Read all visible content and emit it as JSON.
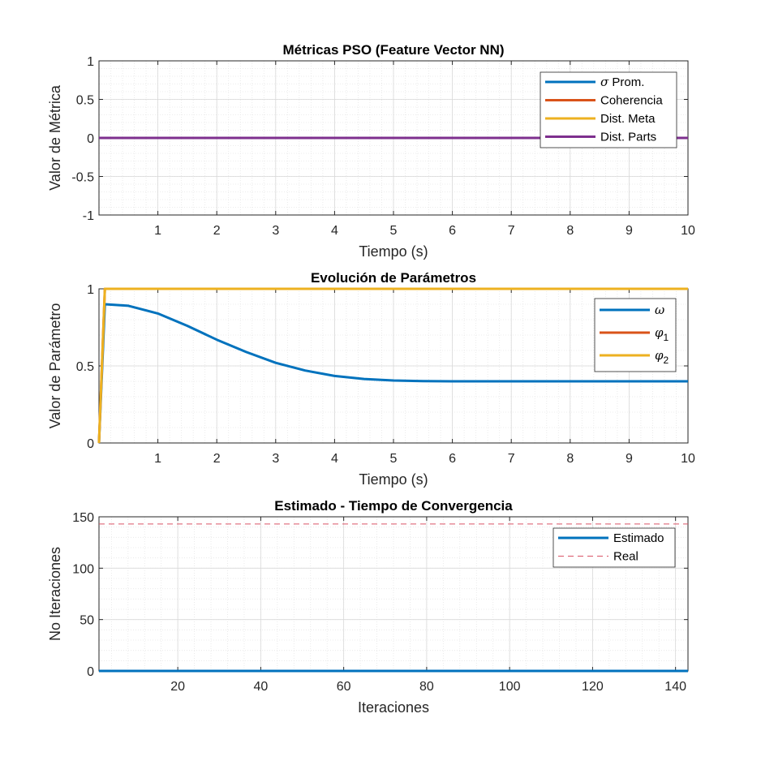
{
  "colors": {
    "blue": "#0072BD",
    "orange": "#D95319",
    "yellow": "#EDB120",
    "purple": "#7E2F8E",
    "red_dash": "#D95366",
    "grid": "#d9d9d9",
    "axis": "#262626"
  },
  "chart_data": [
    {
      "type": "line",
      "title": "Métricas PSO (Feature Vector NN)",
      "xlabel": "Tiempo (s)",
      "ylabel": "Valor de Métrica",
      "xlim": [
        0,
        10
      ],
      "ylim": [
        -1,
        1
      ],
      "xticks": [
        "1",
        "2",
        "3",
        "4",
        "5",
        "6",
        "7",
        "8",
        "9",
        "10"
      ],
      "yticks": [
        "-1",
        "-0.5",
        "0",
        "0.5",
        "1"
      ],
      "grid": true,
      "minor_grid": true,
      "legend_position": "top-right",
      "series": [
        {
          "name": "σ Prom.",
          "legend_symbol": "σ",
          "legend_rest": " Prom.",
          "color": "blue",
          "x": [
            0,
            10
          ],
          "y": [
            0,
            0
          ]
        },
        {
          "name": "Coherencia",
          "legend_symbol": "",
          "legend_rest": "Coherencia",
          "color": "orange",
          "x": [
            0,
            10
          ],
          "y": [
            0,
            0
          ]
        },
        {
          "name": "Dist. Meta",
          "legend_symbol": "",
          "legend_rest": "Dist. Meta",
          "color": "yellow",
          "x": [
            0,
            10
          ],
          "y": [
            0,
            0
          ]
        },
        {
          "name": "Dist. Parts",
          "legend_symbol": "",
          "legend_rest": "Dist. Parts",
          "color": "purple",
          "x": [
            0,
            10
          ],
          "y": [
            0,
            0
          ]
        }
      ]
    },
    {
      "type": "line",
      "title": "Evolución de Parámetros",
      "xlabel": "Tiempo (s)",
      "ylabel": "Valor de Parámetro",
      "xlim": [
        0,
        10
      ],
      "ylim": [
        0,
        1
      ],
      "xticks": [
        "1",
        "2",
        "3",
        "4",
        "5",
        "6",
        "7",
        "8",
        "9",
        "10"
      ],
      "yticks": [
        "0",
        "0.5",
        "1"
      ],
      "grid": true,
      "minor_grid": true,
      "legend_position": "top-right",
      "series": [
        {
          "name": "ω",
          "legend_symbol": "ω",
          "legend_sub": "",
          "color": "blue",
          "x": [
            0,
            0.1,
            0.5,
            1,
            1.5,
            2,
            2.5,
            3,
            3.5,
            4,
            4.5,
            5,
            5.5,
            6,
            7,
            8,
            9,
            10
          ],
          "y": [
            0,
            0.9,
            0.89,
            0.84,
            0.76,
            0.67,
            0.59,
            0.52,
            0.47,
            0.435,
            0.415,
            0.405,
            0.401,
            0.4,
            0.4,
            0.4,
            0.4,
            0.4
          ]
        },
        {
          "name": "φ1",
          "legend_symbol": "φ",
          "legend_sub": "1",
          "color": "orange",
          "x": [
            0,
            0.1,
            10
          ],
          "y": [
            0,
            1,
            1
          ]
        },
        {
          "name": "φ2",
          "legend_symbol": "φ",
          "legend_sub": "2",
          "color": "yellow",
          "x": [
            0,
            0.1,
            10
          ],
          "y": [
            0,
            1,
            1
          ]
        }
      ]
    },
    {
      "type": "line",
      "title": "Estimado - Tiempo de Convergencia",
      "xlabel": "Iteraciones",
      "ylabel": "No Iteraciones",
      "xlim": [
        1,
        143
      ],
      "ylim": [
        0,
        150
      ],
      "xticks": [
        "20",
        "40",
        "60",
        "80",
        "100",
        "120",
        "140"
      ],
      "yticks": [
        "0",
        "50",
        "100",
        "150"
      ],
      "grid": true,
      "minor_grid": true,
      "legend_position": "top-right",
      "series": [
        {
          "name": "Estimado",
          "color": "blue",
          "dash": false,
          "x": [
            1,
            143
          ],
          "y": [
            0,
            0
          ]
        },
        {
          "name": "Real",
          "color": "red_dash",
          "dash": true,
          "x": [
            1,
            143
          ],
          "y": [
            143,
            143
          ]
        }
      ]
    }
  ]
}
